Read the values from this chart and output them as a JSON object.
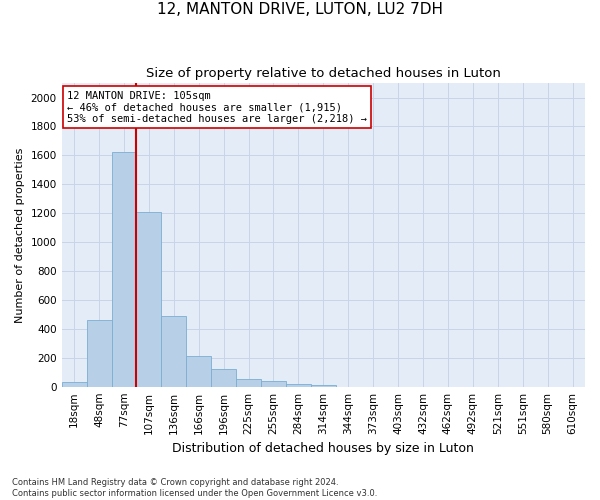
{
  "title": "12, MANTON DRIVE, LUTON, LU2 7DH",
  "subtitle": "Size of property relative to detached houses in Luton",
  "xlabel": "Distribution of detached houses by size in Luton",
  "ylabel": "Number of detached properties",
  "categories": [
    "18sqm",
    "48sqm",
    "77sqm",
    "107sqm",
    "136sqm",
    "166sqm",
    "196sqm",
    "225sqm",
    "255sqm",
    "284sqm",
    "314sqm",
    "344sqm",
    "373sqm",
    "403sqm",
    "432sqm",
    "462sqm",
    "492sqm",
    "521sqm",
    "551sqm",
    "580sqm",
    "610sqm"
  ],
  "values": [
    30,
    460,
    1620,
    1210,
    490,
    210,
    120,
    50,
    40,
    20,
    10,
    0,
    0,
    0,
    0,
    0,
    0,
    0,
    0,
    0,
    0
  ],
  "bar_color": "#b8cfe8",
  "bar_edge_color": "#7aaed4",
  "vline_color": "#cc0000",
  "annotation_text": "12 MANTON DRIVE: 105sqm\n← 46% of detached houses are smaller (1,915)\n53% of semi-detached houses are larger (2,218) →",
  "annotation_box_color": "#ffffff",
  "annotation_box_edge_color": "#cc0000",
  "ylim": [
    0,
    2100
  ],
  "yticks": [
    0,
    200,
    400,
    600,
    800,
    1000,
    1200,
    1400,
    1600,
    1800,
    2000
  ],
  "grid_color": "#c8d4e8",
  "bg_color": "#e4ecf7",
  "footer": "Contains HM Land Registry data © Crown copyright and database right 2024.\nContains public sector information licensed under the Open Government Licence v3.0.",
  "title_fontsize": 11,
  "subtitle_fontsize": 9.5,
  "xlabel_fontsize": 9,
  "ylabel_fontsize": 8,
  "tick_fontsize": 7.5,
  "annotation_fontsize": 7.5,
  "footer_fontsize": 6
}
